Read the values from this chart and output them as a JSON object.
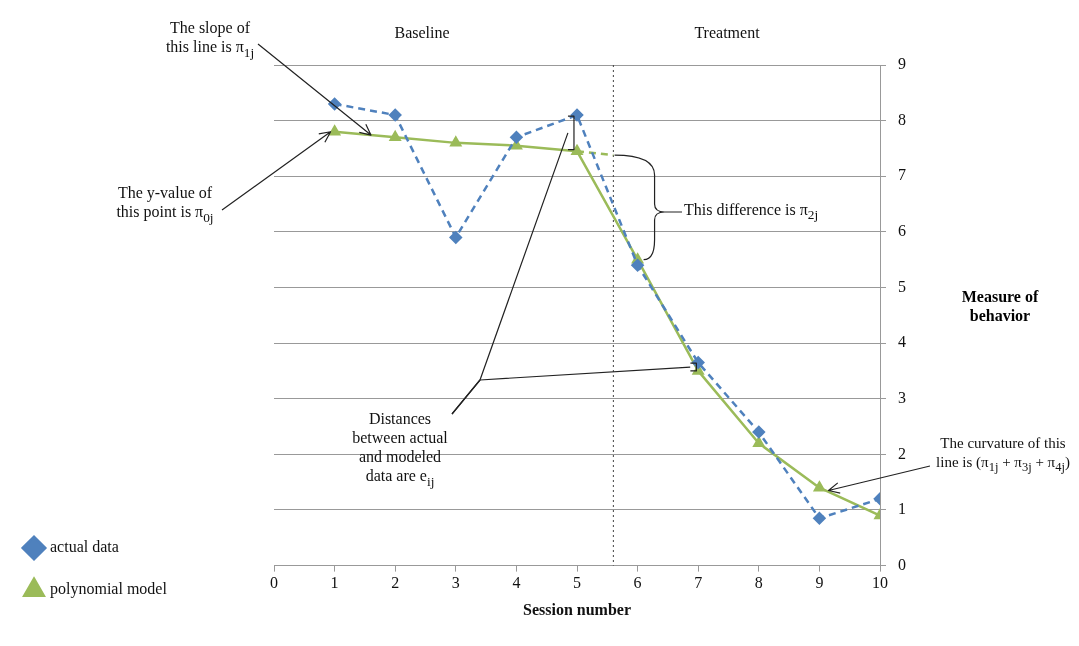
{
  "chart_data": {
    "type": "line",
    "xlabel": "Session number",
    "ylabel": "Measure of behavior",
    "x": [
      1,
      2,
      3,
      4,
      5,
      6,
      7,
      8,
      9,
      10
    ],
    "series": [
      {
        "name": "actual data",
        "color": "#4f81bd",
        "values": [
          8.3,
          8.1,
          5.9,
          7.7,
          8.1,
          5.4,
          3.65,
          2.4,
          0.85,
          1.2
        ],
        "marker": "diamond",
        "line_style": "dashed"
      },
      {
        "name": "polynomial model",
        "color": "#9bbb59",
        "values": [
          7.8,
          7.7,
          7.6,
          7.55,
          7.45,
          5.5,
          3.5,
          2.2,
          1.4,
          0.9
        ],
        "marker": "triangle",
        "line_style": "solid"
      },
      {
        "color": "#9bbb59",
        "x": [
          5,
          5.6
        ],
        "values": [
          7.45,
          7.38
        ],
        "marker": "none",
        "line_style": "dashed"
      }
    ],
    "xlim": [
      0,
      10
    ],
    "xticks": [
      0,
      1,
      2,
      3,
      4,
      5,
      6,
      7,
      8,
      9,
      10
    ],
    "ylim": [
      0,
      9
    ],
    "yticks": [
      0,
      1,
      2,
      3,
      4,
      5,
      6,
      7,
      8,
      9
    ],
    "grid": "y",
    "legend": "left",
    "ref_lines": [
      {
        "axis": "x",
        "value": 5.6,
        "line_style": "dotted",
        "color": "#404040"
      }
    ],
    "annotations": [
      "Baseline",
      "Treatment",
      {
        "text": "The slope of this line is π$_{1j}$",
        "x": 1.6,
        "y": 7.74
      },
      {
        "text": "The y-value of this point is π$_{0j}$",
        "x": 1,
        "y": 7.8
      },
      {
        "text": "This difference is π$_{2j}$",
        "x": 6,
        "y": 5.5
      },
      {
        "text": "Distances between actual and modeled data are e$_{ij}$",
        "x": 7,
        "y": 3.57
      },
      {
        "text": "The curvature of this line is (π$_{1j}$ + π$_{3j}$ + π$_{4j}$)",
        "x": 9.15,
        "y": 1.35
      }
    ]
  }
}
